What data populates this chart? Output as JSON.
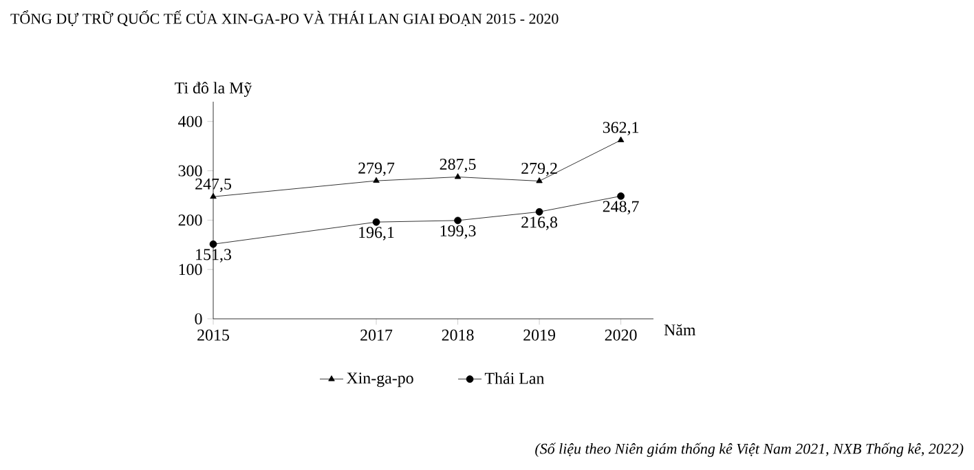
{
  "chart_data": {
    "type": "line",
    "title": "TỔNG DỰ TRỮ QUỐC TẾ CỦA XIN-GA-PO VÀ THÁI LAN GIAI ĐOẠN 2015 - 2020",
    "x": [
      2015,
      2017,
      2018,
      2019,
      2020
    ],
    "xlim": [
      2015,
      2020.4
    ],
    "xticks": [
      2015,
      2017,
      2018,
      2019,
      2020
    ],
    "ylim": [
      0,
      440
    ],
    "yticks": [
      0,
      100,
      200,
      300,
      400
    ],
    "xlabel": "Năm",
    "ylabel": "Ti đô la Mỹ",
    "series": [
      {
        "name": "Xin-ga-po",
        "color": "#000000",
        "marker": "triangle",
        "values": [
          247.5,
          279.7,
          287.5,
          279.2,
          362.1
        ],
        "value_labels": [
          "247,5",
          "279,7",
          "287,5",
          "279,2",
          "362,1"
        ]
      },
      {
        "name": "Thái Lan",
        "color": "#000000",
        "marker": "circle",
        "values": [
          151.3,
          196.1,
          199.3,
          216.8,
          248.7
        ],
        "value_labels": [
          "151,3",
          "196,1",
          "199,3",
          "216,8",
          "248,7"
        ]
      }
    ],
    "legend": "bottom",
    "grid": false,
    "annotations": [
      "(Số liệu theo Niên giám thống kê Việt Nam 2021, NXB Thống kê, 2022)"
    ]
  }
}
